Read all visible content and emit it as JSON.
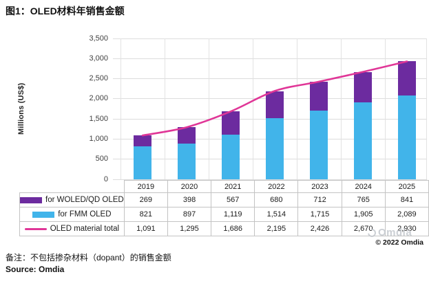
{
  "figure": {
    "title": "图1：OLED材料年销售金额"
  },
  "chart_data": {
    "type": "bar",
    "variant": "stacked-bars-with-total-line",
    "title": "图1：OLED材料年销售金额",
    "categories": [
      "2019",
      "2020",
      "2021",
      "2022",
      "2023",
      "2024",
      "2025"
    ],
    "series": [
      {
        "name": "for WOLED/QD OLED",
        "kind": "bar",
        "color": "#6c2b9f",
        "values": [
          269,
          398,
          567,
          680,
          712,
          765,
          841
        ]
      },
      {
        "name": "for FMM OLED",
        "kind": "bar",
        "color": "#41b4ea",
        "values": [
          821,
          897,
          1119,
          1514,
          1715,
          1905,
          2089
        ]
      },
      {
        "name": "OLED material total",
        "kind": "line",
        "color": "#e03697",
        "values": [
          1091,
          1295,
          1686,
          2195,
          2426,
          2670,
          2930
        ]
      }
    ],
    "xlabel": "",
    "ylabel": "Millions (US$)",
    "ylim": [
      0,
      3500
    ],
    "ytick_step": 500,
    "grid": true,
    "legend_position": "table-left"
  },
  "table": {
    "rows": [
      {
        "label": "for WOLED/QD OLED",
        "swatch": "bar-purple",
        "values": [
          "269",
          "398",
          "567",
          "680",
          "712",
          "765",
          "841"
        ]
      },
      {
        "label": "for FMM OLED",
        "swatch": "bar-blue",
        "values": [
          "821",
          "897",
          "1,119",
          "1,514",
          "1,715",
          "1,905",
          "2,089"
        ]
      },
      {
        "label": "OLED material total",
        "swatch": "line-pink",
        "values": [
          "1,091",
          "1,295",
          "1,686",
          "2,195",
          "2,426",
          "2,670",
          "2,930"
        ]
      }
    ]
  },
  "watermark": {
    "logo_text": "Omdia",
    "copyright": "© 2022 Omdia"
  },
  "footer": {
    "note": "备注：不包括掺杂材料（dopant）的销售金额",
    "source": "Source: Omdia"
  },
  "colors": {
    "purple": "#6c2b9f",
    "blue": "#41b4ea",
    "pink": "#e03697",
    "grid": "#dcdcdc",
    "table_border": "#c3c3c3"
  }
}
